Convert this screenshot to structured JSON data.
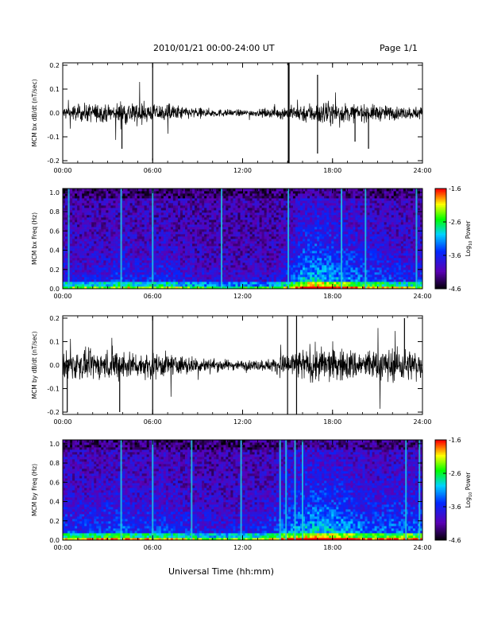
{
  "header": {
    "title": "2010/01/21  00:00-24:00 UT",
    "page": "Page 1/1"
  },
  "x_axis_title": "Universal Time (hh:mm)",
  "colorbar": {
    "label_prefix": "Log",
    "label_subscript": "10",
    "label_suffix": " Power",
    "ticks": [
      "-1.6",
      "-2.6",
      "-3.6",
      "-4.6"
    ],
    "colors": [
      "#ff0000",
      "#ffff00",
      "#00ff00",
      "#00ffff",
      "#0000ff",
      "#5a00b4",
      "#000000"
    ]
  },
  "chart_data": [
    {
      "type": "line",
      "ylabel": "MCM bx dB/dt (nT/sec)",
      "x_ticks": [
        "00:00",
        "06:00",
        "12:00",
        "18:00",
        "24:00"
      ],
      "x_range_hours": [
        0,
        24
      ],
      "y_ticks": [
        "0.2",
        "0.1",
        "0.0",
        "-0.1",
        "-0.2"
      ],
      "ylim": [
        -0.21,
        0.21
      ],
      "noise_amplitude_by_hour": [
        0.025,
        0.03,
        0.035,
        0.03,
        0.045,
        0.04,
        0.03,
        0.035,
        0.025,
        0.018,
        0.015,
        0.013,
        0.012,
        0.013,
        0.018,
        0.025,
        0.035,
        0.04,
        0.04,
        0.035,
        0.03,
        0.03,
        0.025,
        0.022,
        0.025
      ],
      "spikes": [
        {
          "hour": 3.95,
          "value": -0.15
        },
        {
          "hour": 6.0,
          "value": 0.21
        },
        {
          "hour": 6.0,
          "value": -0.2
        },
        {
          "hour": 15.05,
          "value": 0.21
        },
        {
          "hour": 15.05,
          "value": -0.21
        },
        {
          "hour": 15.1,
          "value": 0.21
        },
        {
          "hour": 15.1,
          "value": -0.21
        },
        {
          "hour": 17.0,
          "value": 0.16
        },
        {
          "hour": 17.0,
          "value": -0.17
        },
        {
          "hour": 19.5,
          "value": -0.12
        },
        {
          "hour": 20.4,
          "value": -0.15
        }
      ]
    },
    {
      "type": "heatmap",
      "ylabel": "MCM bx Freq (Hz)",
      "x_ticks": [
        "00:00",
        "06:00",
        "12:00",
        "18:00",
        "24:00"
      ],
      "x_range_hours": [
        0,
        24
      ],
      "y_ticks": [
        "1.0",
        "0.8",
        "0.6",
        "0.4",
        "0.2",
        "0.0"
      ],
      "ylim": [
        0,
        1.04
      ],
      "colorbar_range": [
        -4.6,
        -1.6
      ],
      "colorbar_label": "Log10 Power",
      "activity_by_hour": [
        0.35,
        0.3,
        0.3,
        0.35,
        0.45,
        0.35,
        0.4,
        0.4,
        0.3,
        0.25,
        0.2,
        0.2,
        0.2,
        0.2,
        0.2,
        0.4,
        0.75,
        0.8,
        0.7,
        0.65,
        0.55,
        0.5,
        0.45,
        0.4,
        0.4
      ],
      "vertical_streaks_hours": [
        0.4,
        3.9,
        6.0,
        10.6,
        15.05,
        18.6,
        20.2,
        23.6
      ]
    },
    {
      "type": "line",
      "ylabel": "MCM by dB/dt (nT/sec)",
      "x_ticks": [
        "00:00",
        "06:00",
        "12:00",
        "18:00",
        "24:00"
      ],
      "x_range_hours": [
        0,
        24
      ],
      "y_ticks": [
        "0.2",
        "0.1",
        "0.0",
        "-0.1",
        "-0.2"
      ],
      "ylim": [
        -0.21,
        0.21
      ],
      "noise_amplitude_by_hour": [
        0.05,
        0.055,
        0.05,
        0.055,
        0.06,
        0.045,
        0.05,
        0.045,
        0.035,
        0.03,
        0.025,
        0.02,
        0.018,
        0.02,
        0.025,
        0.045,
        0.06,
        0.065,
        0.065,
        0.06,
        0.055,
        0.06,
        0.065,
        0.06,
        0.055
      ],
      "spikes": [
        {
          "hour": 0.3,
          "value": -0.2
        },
        {
          "hour": 3.8,
          "value": -0.2
        },
        {
          "hour": 6.0,
          "value": 0.21
        },
        {
          "hour": 6.0,
          "value": -0.21
        },
        {
          "hour": 15.0,
          "value": 0.21
        },
        {
          "hour": 15.0,
          "value": -0.21
        },
        {
          "hour": 15.6,
          "value": 0.21
        },
        {
          "hour": 15.6,
          "value": -0.21
        },
        {
          "hour": 22.8,
          "value": 0.2
        }
      ]
    },
    {
      "type": "heatmap",
      "ylabel": "MCM by Freq (Hz)",
      "x_ticks": [
        "00:00",
        "06:00",
        "12:00",
        "18:00",
        "24:00"
      ],
      "x_range_hours": [
        0,
        24
      ],
      "y_ticks": [
        "1.0",
        "0.8",
        "0.6",
        "0.4",
        "0.2",
        "0.0"
      ],
      "ylim": [
        0,
        1.04
      ],
      "colorbar_range": [
        -4.6,
        -1.6
      ],
      "colorbar_label": "Log10 Power",
      "activity_by_hour": [
        0.5,
        0.45,
        0.45,
        0.5,
        0.55,
        0.45,
        0.5,
        0.45,
        0.4,
        0.35,
        0.3,
        0.3,
        0.35,
        0.35,
        0.45,
        0.65,
        0.75,
        0.8,
        0.75,
        0.7,
        0.6,
        0.55,
        0.6,
        0.6,
        0.55
      ],
      "vertical_streaks_hours": [
        3.9,
        6.0,
        8.6,
        11.9,
        14.5,
        14.9,
        15.5,
        16.0,
        22.9,
        23.8
      ]
    }
  ]
}
